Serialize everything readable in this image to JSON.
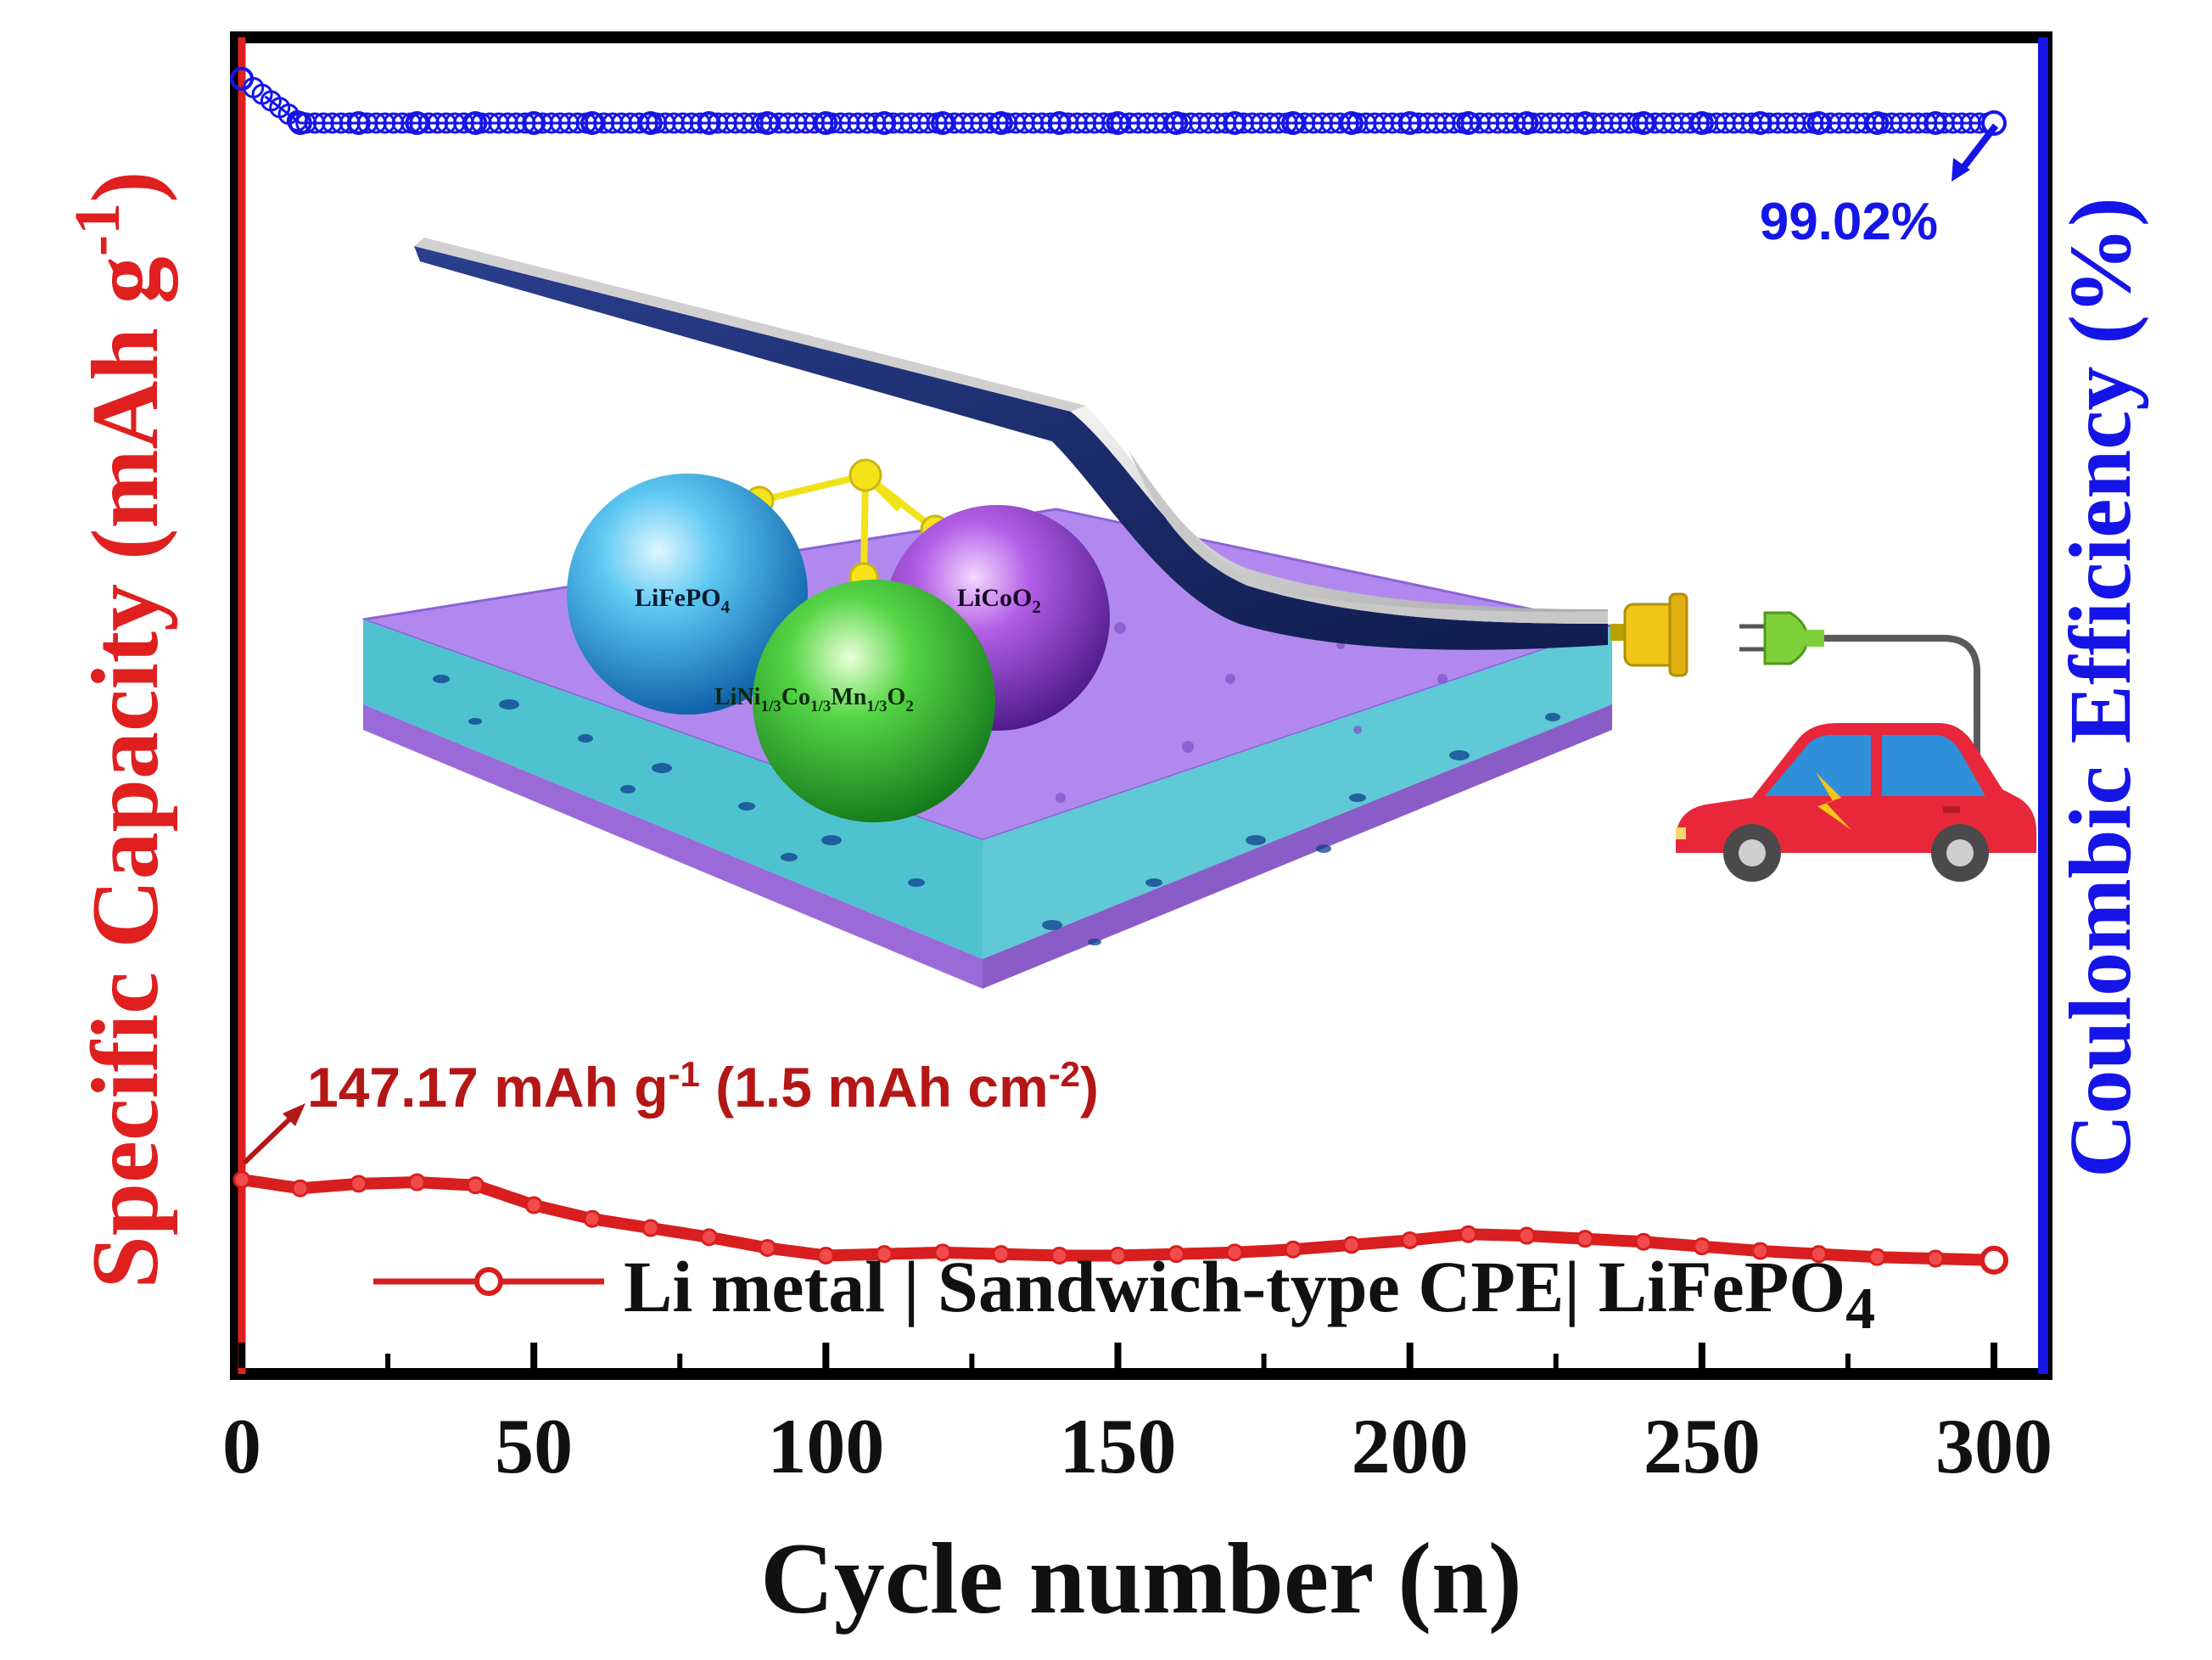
{
  "chart_data": {
    "type": "line",
    "x_axis": {
      "label": "Cycle number (n)",
      "ticks": [
        0,
        50,
        100,
        150,
        200,
        250,
        300
      ],
      "range": [
        0,
        310
      ]
    },
    "y_left": {
      "label_main": "Specific Capacity (mAh g",
      "label_sup": "-1",
      "label_end": ")",
      "color": "#e01f1f"
    },
    "y_right": {
      "label": "Coulombic Efficiency (%)",
      "color": "#1515e8"
    },
    "series": [
      {
        "name": "Li metal | Sandwich-type CPE| LiFePO",
        "name_sub": "4",
        "axis": "left",
        "color": "#d81e1e",
        "x": [
          0,
          10,
          20,
          30,
          40,
          50,
          60,
          70,
          80,
          90,
          100,
          110,
          120,
          130,
          140,
          150,
          160,
          170,
          180,
          190,
          200,
          210,
          220,
          230,
          240,
          250,
          260,
          270,
          280,
          290,
          300
        ],
        "y": [
          147.17,
          146.6,
          146.9,
          147.0,
          146.8,
          145.5,
          144.6,
          144.0,
          143.4,
          142.7,
          142.2,
          142.3,
          142.4,
          142.3,
          142.2,
          142.2,
          142.3,
          142.4,
          142.6,
          142.9,
          143.2,
          143.6,
          143.5,
          143.3,
          143.1,
          142.8,
          142.5,
          142.3,
          142.1,
          142.0,
          141.9
        ]
      },
      {
        "name": "Coulombic efficiency",
        "axis": "right",
        "color": "#1515e8",
        "x": [
          0,
          10,
          20,
          30,
          40,
          50,
          60,
          70,
          80,
          90,
          100,
          110,
          120,
          130,
          140,
          150,
          160,
          170,
          180,
          190,
          200,
          210,
          220,
          230,
          240,
          250,
          260,
          270,
          280,
          290,
          300
        ],
        "y": [
          99.6,
          99.02,
          99.02,
          99.02,
          99.02,
          99.02,
          99.02,
          99.02,
          99.02,
          99.02,
          99.02,
          99.02,
          99.02,
          99.02,
          99.02,
          99.02,
          99.02,
          99.02,
          99.02,
          99.02,
          99.02,
          99.02,
          99.02,
          99.02,
          99.02,
          99.02,
          99.02,
          99.02,
          99.02,
          99.02,
          99.02
        ]
      }
    ],
    "annotations": {
      "capacity_main": "147.17 mAh g",
      "capacity_sup1": "-1",
      "capacity_mid": " (1.5 mAh cm",
      "capacity_sup2": "-2",
      "capacity_end": ")",
      "efficiency": "99.02%"
    },
    "inset": {
      "sphere_1": "LiFePO",
      "sphere_1_sub": "4",
      "sphere_2": "LiCoO",
      "sphere_2_sub": "2",
      "sphere_3_a": "LiNi",
      "sphere_3_sub_a": "1/3",
      "sphere_3_b": "Co",
      "sphere_3_sub_b": "1/3",
      "sphere_3_c": "Mn",
      "sphere_3_sub_c": "1/3",
      "sphere_3_d": "O",
      "sphere_3_sub_d": "2"
    }
  }
}
